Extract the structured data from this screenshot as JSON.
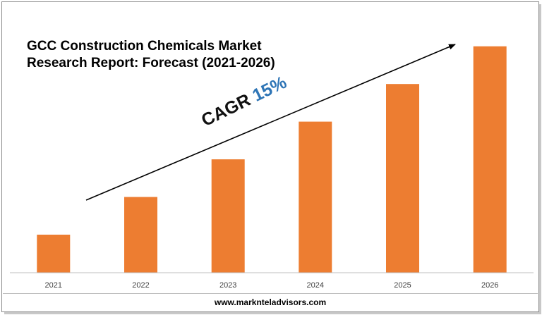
{
  "chart_data": {
    "type": "bar",
    "title_lines": [
      "GCC Construction Chemicals Market",
      "Research Report: Forecast (2021-2026)"
    ],
    "categories": [
      "2021",
      "2022",
      "2023",
      "2024",
      "2025",
      "2026"
    ],
    "values": [
      1.0,
      1.99,
      2.98,
      3.97,
      4.96,
      5.95
    ],
    "ylim": [
      0,
      6.5
    ],
    "bar_color": "#ed7d31",
    "grid": false,
    "annotation": {
      "label": "CAGR",
      "value": "15%",
      "value_color": "#2e75b6"
    },
    "trend_arrow": true
  },
  "footer": "www.marknteladvisors.com"
}
